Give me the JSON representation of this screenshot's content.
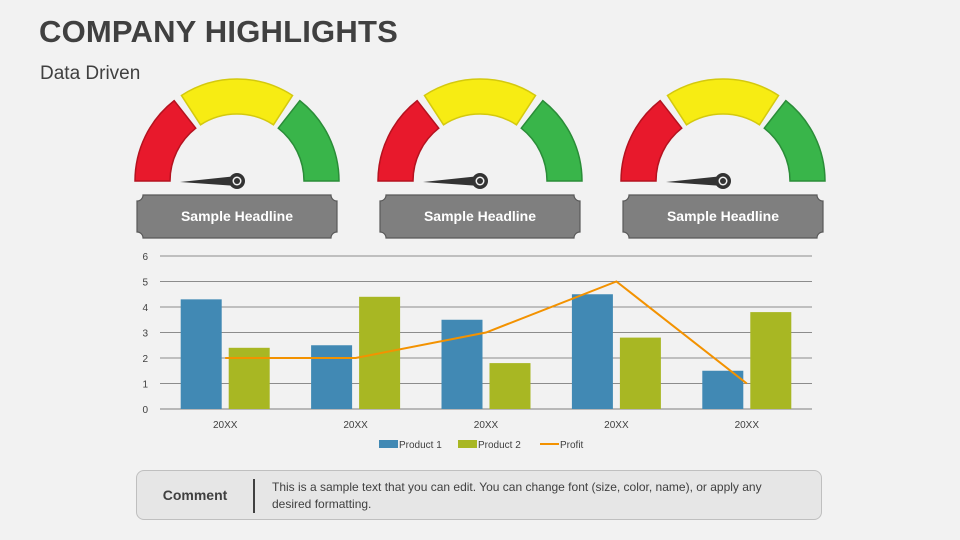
{
  "title": "COMPANY HIGHLIGHTS",
  "subtitle": "Data Driven",
  "gauges": [
    {
      "headline": "Sample Headline",
      "needle_level": 0.0
    },
    {
      "headline": "Sample Headline",
      "needle_level": 0.0
    },
    {
      "headline": "Sample Headline",
      "needle_level": 0.0
    }
  ],
  "gauge_colors": {
    "low": "#e8192c",
    "mid": "#f7ec13",
    "high": "#39b54a",
    "banner": "#7f7f7f"
  },
  "chart_data": {
    "type": "bar",
    "categories": [
      "20XX",
      "20XX",
      "20XX",
      "20XX",
      "20XX"
    ],
    "series": [
      {
        "name": "Product 1",
        "type": "bar",
        "color": "#4189b4",
        "values": [
          4.3,
          2.5,
          3.5,
          4.5,
          1.5
        ]
      },
      {
        "name": "Product 2",
        "type": "bar",
        "color": "#a8b723",
        "values": [
          2.4,
          4.4,
          1.8,
          2.8,
          3.8
        ]
      },
      {
        "name": "Profit",
        "type": "line",
        "color": "#f39200",
        "values": [
          2,
          2,
          3,
          5,
          1
        ]
      }
    ],
    "ylim": [
      0,
      6
    ],
    "yticks": [
      "0",
      "1",
      "2",
      "3",
      "4",
      "5",
      "6"
    ],
    "grid": true,
    "legend": "bottom"
  },
  "comment": {
    "label": "Comment",
    "text": "This is a sample text that you can edit. You can change font (size, color, name), or apply any desired formatting."
  }
}
